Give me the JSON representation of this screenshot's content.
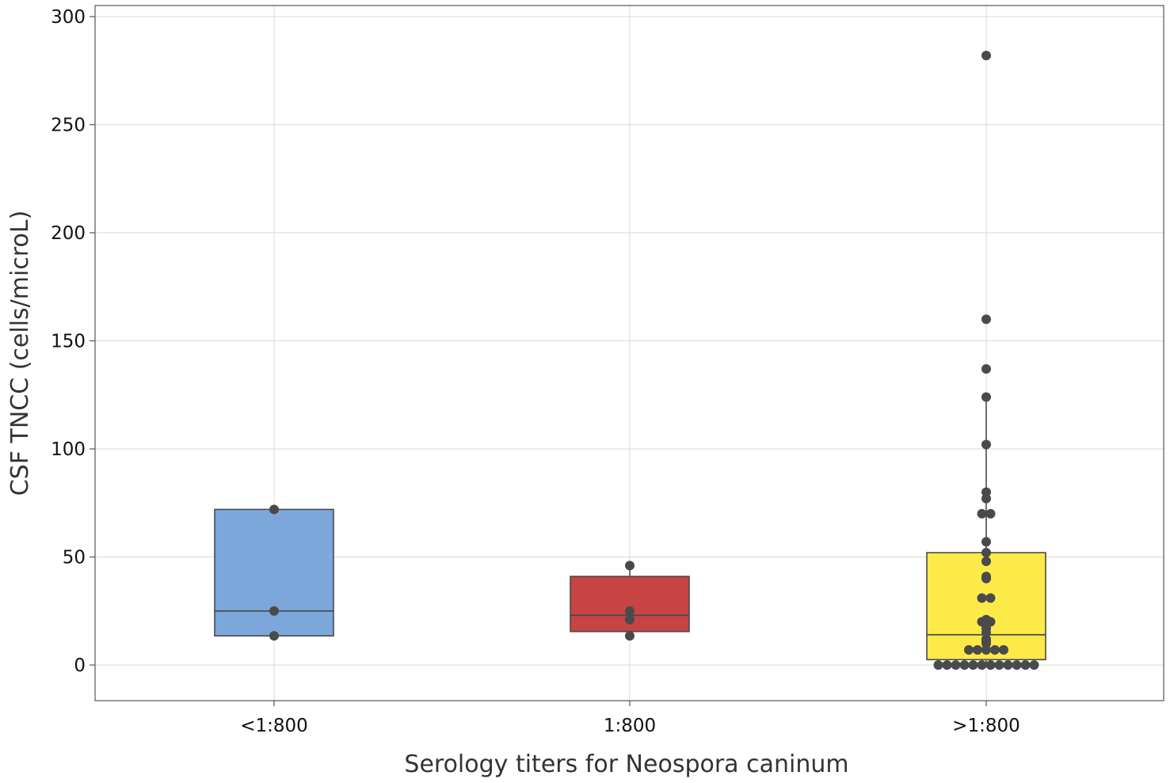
{
  "chart_data": {
    "type": "box",
    "title": "",
    "xlabel": "Serology titers for Neospora caninum",
    "ylabel": "CSF TNCC (cells/microL)",
    "categories": [
      "<1:800",
      "1:800",
      ">1:800"
    ],
    "ylim": [
      -16,
      305
    ],
    "yticks": [
      0,
      50,
      100,
      150,
      200,
      250,
      300
    ],
    "grid": true,
    "legend": "none",
    "colors": {
      "box_fills": [
        "#7BA7DB",
        "#C74443",
        "#FDEA48"
      ],
      "stroke": "#4A4A4A",
      "points": "#4A4A4A",
      "grid": "#E0E0E0"
    },
    "boxes": [
      {
        "category": "<1:800",
        "q1": 13.5,
        "median": 25,
        "q3": 72,
        "whisker_low": 13.5,
        "whisker_high": 72
      },
      {
        "category": "1:800",
        "q1": 15.5,
        "median": 23,
        "q3": 41,
        "whisker_low": 13.5,
        "whisker_high": 46
      },
      {
        "category": ">1:800",
        "q1": 2.5,
        "median": 14,
        "q3": 52,
        "whisker_low": 0,
        "whisker_high": 124
      }
    ],
    "points": [
      {
        "category": "<1:800",
        "values": [
          72,
          25,
          13.5
        ]
      },
      {
        "category": "1:800",
        "values": [
          46,
          25,
          21,
          13.5
        ]
      },
      {
        "category": ">1:800",
        "values": [
          282,
          160,
          137,
          124,
          102,
          80,
          77,
          70,
          70,
          57,
          52,
          48,
          41,
          40,
          31,
          31,
          21,
          20,
          20,
          17,
          15,
          12,
          11,
          10,
          7,
          7,
          7,
          7,
          7,
          0,
          0,
          0,
          0,
          0,
          0,
          0,
          0,
          0,
          0,
          0,
          0
        ]
      }
    ]
  }
}
